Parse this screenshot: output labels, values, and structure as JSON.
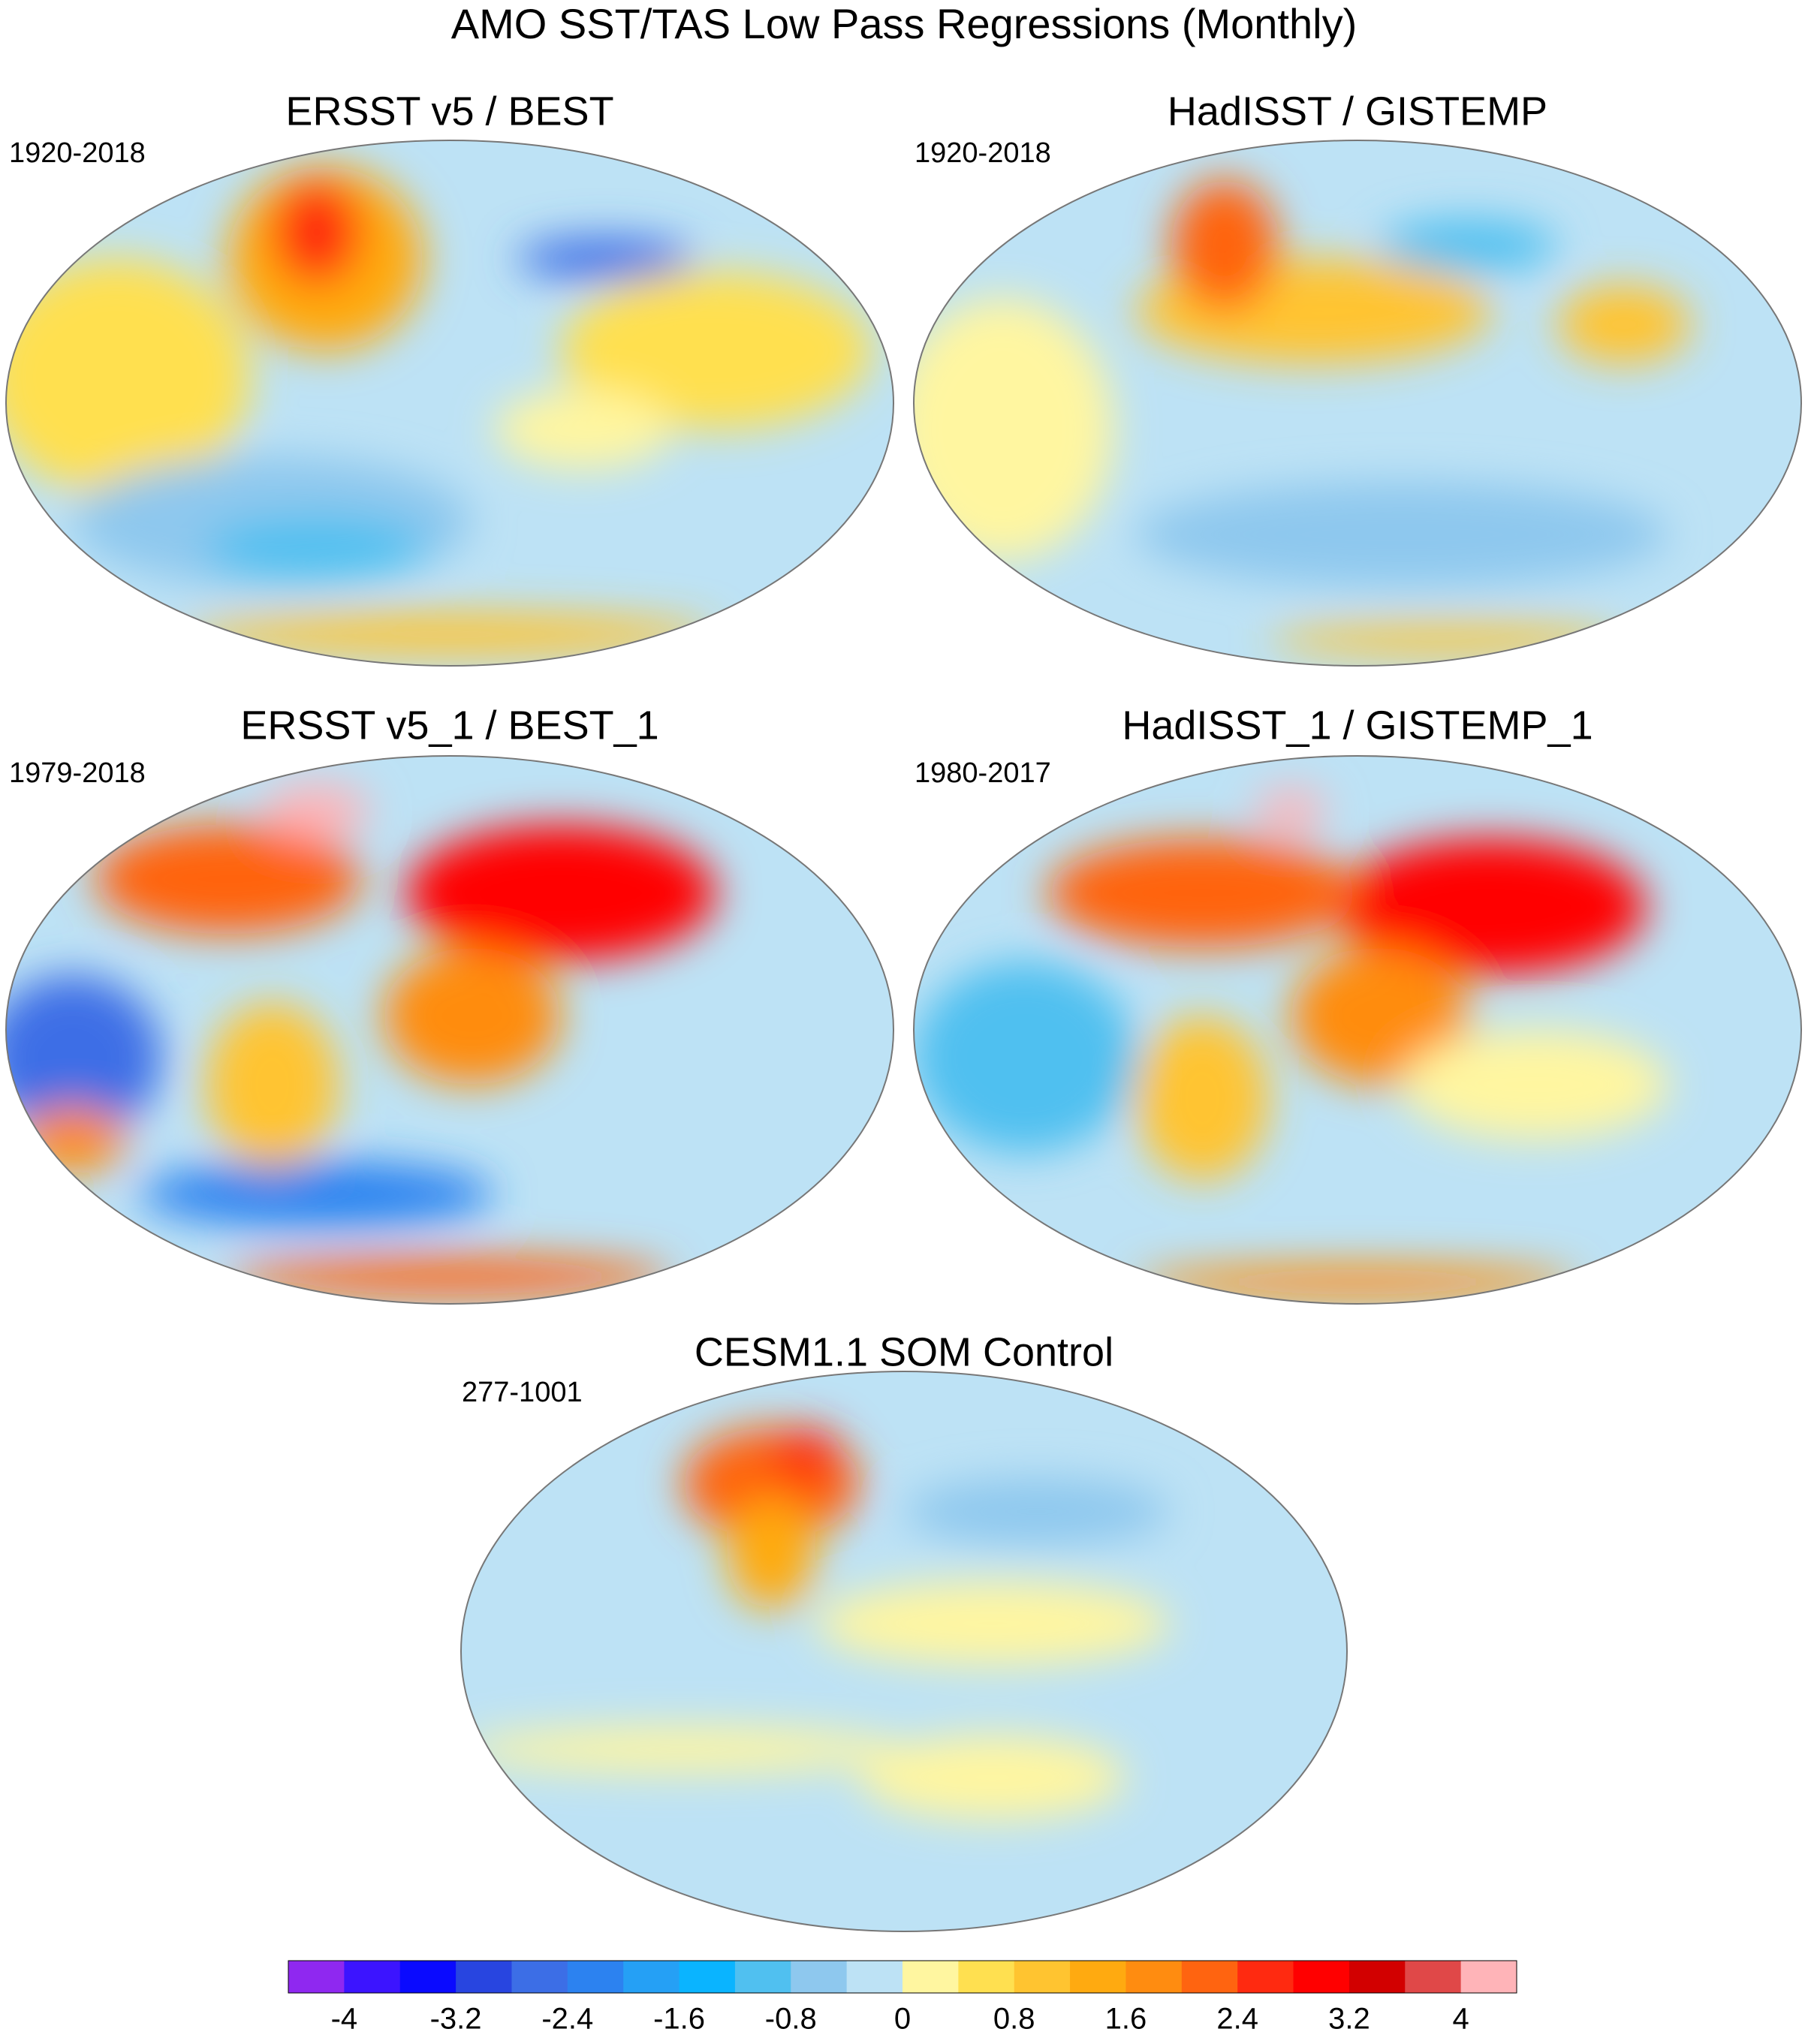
{
  "title": "AMO SST/TAS Low Pass Regressions (Monthly)",
  "panels": [
    {
      "title": "ERSST v5 / BEST",
      "period": "1920-2018"
    },
    {
      "title": "HadISST / GISTEMP",
      "period": "1920-2018"
    },
    {
      "title": "ERSST v5_1 / BEST_1",
      "period": "1979-2018"
    },
    {
      "title": "HadISST_1 / GISTEMP_1",
      "period": "1980-2017"
    },
    {
      "title": "CESM1.1 SOM Control",
      "period": "277-1001"
    }
  ],
  "colorbar": {
    "xlim": [
      -4.4,
      4.4
    ],
    "ticks": [
      -4,
      -3.2,
      -2.4,
      -1.6,
      -0.8,
      0,
      0.8,
      1.6,
      2.4,
      3.2,
      4
    ],
    "colors": [
      "#8f28f0",
      "#3c14ff",
      "#0a0aff",
      "#2845e0",
      "#3c6ee6",
      "#2c82f0",
      "#25a0f5",
      "#0ab4ff",
      "#50c0f0",
      "#8ec8ee",
      "#bde2f5",
      "#fff6a0",
      "#ffe050",
      "#ffc430",
      "#ffaa10",
      "#ff8c10",
      "#ff6410",
      "#ff2a10",
      "#ff0000",
      "#d20000",
      "#e04848",
      "#ffb4b8"
    ]
  }
}
